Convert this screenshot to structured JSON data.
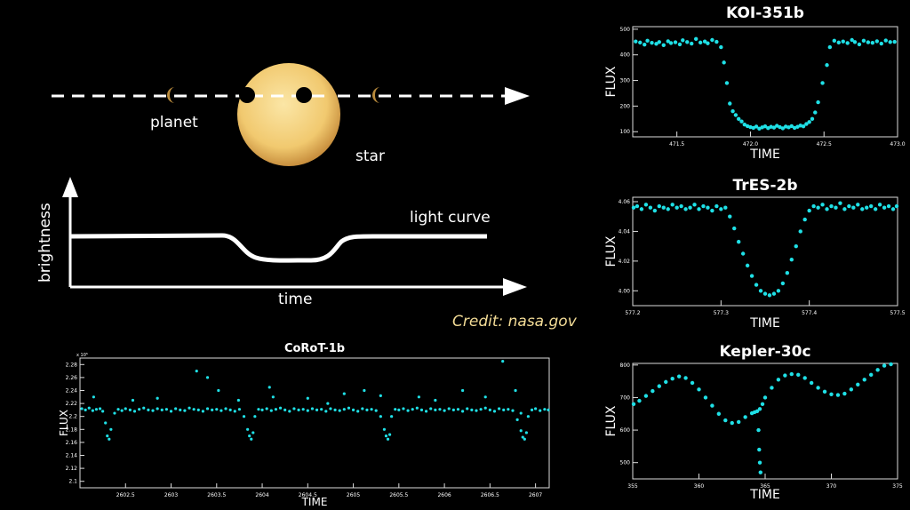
{
  "diagram": {
    "planet_label": "planet",
    "star_label": "star",
    "brightness_label": "brightness",
    "time_label": "time",
    "light_curve_label": "light curve",
    "credit": "Credit: nasa.gov",
    "star_color": "#f5d27c",
    "planet_color": "#b88a3c"
  },
  "point_color": "#1fe0e6",
  "chart_data": [
    {
      "id": "koi",
      "type": "scatter",
      "title": "KOI-351b",
      "xlabel": "TIME",
      "ylabel": "FLUX",
      "xlim": [
        471.2,
        473.0
      ],
      "ylim": [
        80,
        510
      ],
      "xticks": [
        471.5,
        472.0,
        472.5,
        473.0
      ],
      "xtick_labels": [
        "471.5",
        "472.0",
        "472.5",
        "473.0"
      ],
      "yticks": [
        100,
        200,
        300,
        400,
        500
      ],
      "ytick_labels": [
        "100",
        "200",
        "300",
        "400",
        "500"
      ],
      "x": [
        471.22,
        471.25,
        471.28,
        471.3,
        471.33,
        471.36,
        471.38,
        471.41,
        471.44,
        471.46,
        471.49,
        471.52,
        471.54,
        471.57,
        471.6,
        471.63,
        471.66,
        471.69,
        471.71,
        471.74,
        471.77,
        471.8,
        471.82,
        471.84,
        471.86,
        471.88,
        471.9,
        471.92,
        471.94,
        471.96,
        471.98,
        472.0,
        472.02,
        472.04,
        472.06,
        472.08,
        472.1,
        472.12,
        472.14,
        472.16,
        472.18,
        472.2,
        472.22,
        472.24,
        472.26,
        472.28,
        472.3,
        472.32,
        472.34,
        472.36,
        472.38,
        472.4,
        472.42,
        472.44,
        472.46,
        472.49,
        472.52,
        472.54,
        472.57,
        472.6,
        472.63,
        472.66,
        472.69,
        472.71,
        472.74,
        472.77,
        472.8,
        472.83,
        472.86,
        472.89,
        472.92,
        472.95,
        472.98
      ],
      "y": [
        452,
        448,
        440,
        455,
        447,
        443,
        450,
        438,
        453,
        446,
        449,
        441,
        457,
        450,
        444,
        462,
        448,
        452,
        445,
        458,
        451,
        430,
        370,
        290,
        210,
        180,
        165,
        150,
        140,
        128,
        122,
        118,
        115,
        120,
        112,
        117,
        121,
        114,
        119,
        116,
        123,
        118,
        113,
        120,
        117,
        122,
        115,
        119,
        124,
        121,
        130,
        138,
        150,
        175,
        215,
        290,
        360,
        430,
        455,
        448,
        452,
        446,
        458,
        450,
        441,
        455,
        449,
        447,
        453,
        444,
        456,
        450,
        451
      ]
    },
    {
      "id": "tres",
      "type": "scatter",
      "title": "TrES-2b",
      "xlabel": "TIME",
      "ylabel": "FLUX",
      "xlim": [
        577.2,
        577.5
      ],
      "ylim": [
        3.99,
        4.063
      ],
      "xticks": [
        577.2,
        577.3,
        577.4,
        577.5
      ],
      "xtick_labels": [
        "577.2",
        "577.3",
        "577.4",
        "577.5"
      ],
      "yticks": [
        4.0,
        4.02,
        4.04,
        4.06
      ],
      "ytick_labels": [
        "4.00",
        "4.02",
        "4.04",
        "4.06"
      ],
      "x": [
        577.2,
        577.205,
        577.21,
        577.215,
        577.22,
        577.225,
        577.23,
        577.235,
        577.24,
        577.245,
        577.25,
        577.255,
        577.26,
        577.265,
        577.27,
        577.275,
        577.28,
        577.285,
        577.29,
        577.295,
        577.3,
        577.305,
        577.31,
        577.315,
        577.32,
        577.325,
        577.33,
        577.335,
        577.34,
        577.345,
        577.35,
        577.355,
        577.36,
        577.365,
        577.37,
        577.375,
        577.38,
        577.385,
        577.39,
        577.395,
        577.4,
        577.405,
        577.41,
        577.415,
        577.42,
        577.425,
        577.43,
        577.435,
        577.44,
        577.445,
        577.45,
        577.455,
        577.46,
        577.465,
        577.47,
        577.475,
        577.48,
        577.485,
        577.49,
        577.495,
        577.5
      ],
      "y": [
        4.056,
        4.057,
        4.055,
        4.058,
        4.056,
        4.054,
        4.057,
        4.056,
        4.055,
        4.058,
        4.056,
        4.057,
        4.055,
        4.056,
        4.058,
        4.055,
        4.057,
        4.056,
        4.054,
        4.057,
        4.055,
        4.056,
        4.05,
        4.042,
        4.033,
        4.025,
        4.017,
        4.01,
        4.004,
        4.0,
        3.998,
        3.997,
        3.998,
        4.0,
        4.005,
        4.012,
        4.021,
        4.03,
        4.04,
        4.048,
        4.054,
        4.057,
        4.056,
        4.058,
        4.055,
        4.057,
        4.056,
        4.059,
        4.055,
        4.057,
        4.056,
        4.058,
        4.055,
        4.056,
        4.057,
        4.055,
        4.058,
        4.056,
        4.057,
        4.055,
        4.057
      ]
    },
    {
      "id": "kepler",
      "type": "scatter",
      "title": "Kepler-30c",
      "xlabel": "TIME",
      "ylabel": "FLUX",
      "xlim": [
        355,
        375
      ],
      "ylim": [
        450,
        805
      ],
      "xticks": [
        355,
        360,
        365,
        370,
        375
      ],
      "xtick_labels": [
        "355",
        "360",
        "365",
        "370",
        "375"
      ],
      "yticks": [
        500,
        600,
        700,
        800
      ],
      "ytick_labels": [
        "500",
        "600",
        "700",
        "800"
      ],
      "x": [
        355,
        355.5,
        356,
        356.5,
        357,
        357.5,
        358,
        358.5,
        359,
        359.5,
        360,
        360.5,
        361,
        361.5,
        362,
        362.5,
        363,
        363.5,
        364,
        364.2,
        364.4,
        364.6,
        364.8,
        365,
        365.5,
        366,
        366.5,
        367,
        367.5,
        368,
        368.5,
        369,
        369.5,
        370,
        370.5,
        371,
        371.5,
        372,
        372.5,
        373,
        373.5,
        374,
        374.5,
        364.5,
        364.55,
        364.6,
        364.65
      ],
      "y": [
        680,
        690,
        705,
        720,
        735,
        748,
        758,
        765,
        760,
        745,
        725,
        700,
        675,
        650,
        630,
        622,
        625,
        640,
        652,
        655,
        658,
        665,
        680,
        700,
        730,
        755,
        768,
        772,
        770,
        760,
        745,
        730,
        718,
        710,
        708,
        712,
        725,
        740,
        755,
        770,
        785,
        798,
        808,
        600,
        540,
        500,
        470
      ]
    },
    {
      "id": "corot",
      "type": "scatter",
      "title": "CoRoT-1b",
      "xlabel": "TIME",
      "ylabel": "FLUX",
      "exponent_label": "x 10⁵",
      "xlim": [
        2602.0,
        2607.15
      ],
      "ylim": [
        2.09,
        2.29
      ],
      "xticks": [
        2602.5,
        2603,
        2603.5,
        2604,
        2604.5,
        2605,
        2605.5,
        2606,
        2606.5,
        2607
      ],
      "xtick_labels": [
        "2602.5",
        "2603",
        "2603.5",
        "2604",
        "2604.5",
        "2605",
        "2605.5",
        "2606",
        "2606.5",
        "2607"
      ],
      "yticks": [
        2.1,
        2.12,
        2.14,
        2.16,
        2.18,
        2.2,
        2.22,
        2.24,
        2.26,
        2.28
      ],
      "ytick_labels": [
        "2.1",
        "2.12",
        "2.14",
        "2.16",
        "2.18",
        "2.2",
        "2.22",
        "2.24",
        "2.26",
        "2.28"
      ],
      "x": [
        2602.02,
        2602.06,
        2602.1,
        2602.14,
        2602.18,
        2602.22,
        2602.25,
        2602.28,
        2602.3,
        2602.32,
        2602.34,
        2602.38,
        2602.42,
        2602.46,
        2602.5,
        2602.55,
        2602.6,
        2602.65,
        2602.7,
        2602.75,
        2602.8,
        2602.85,
        2602.9,
        2602.95,
        2603.0,
        2603.05,
        2603.1,
        2603.15,
        2603.2,
        2603.25,
        2603.3,
        2603.35,
        2603.4,
        2603.45,
        2603.5,
        2603.55,
        2603.6,
        2603.65,
        2603.7,
        2603.75,
        2603.8,
        2603.84,
        2603.86,
        2603.88,
        2603.9,
        2603.92,
        2603.96,
        2604.0,
        2604.05,
        2604.1,
        2604.15,
        2604.2,
        2604.25,
        2604.3,
        2604.35,
        2604.4,
        2604.45,
        2604.5,
        2604.55,
        2604.6,
        2604.65,
        2604.7,
        2604.75,
        2604.8,
        2604.85,
        2604.9,
        2604.95,
        2605.0,
        2605.05,
        2605.1,
        2605.15,
        2605.2,
        2605.25,
        2605.3,
        2605.34,
        2605.36,
        2605.38,
        2605.4,
        2605.42,
        2605.46,
        2605.5,
        2605.55,
        2605.6,
        2605.65,
        2605.7,
        2605.75,
        2605.8,
        2605.85,
        2605.9,
        2605.95,
        2606.0,
        2606.05,
        2606.1,
        2606.15,
        2606.2,
        2606.25,
        2606.3,
        2606.35,
        2606.4,
        2606.45,
        2606.5,
        2606.55,
        2606.6,
        2606.65,
        2606.7,
        2606.75,
        2606.8,
        2606.84,
        2606.86,
        2606.88,
        2606.9,
        2606.92,
        2606.96,
        2607.0,
        2607.05,
        2607.1,
        2607.14,
        2602.15,
        2602.58,
        2602.85,
        2603.28,
        2603.4,
        2603.52,
        2603.74,
        2604.08,
        2604.12,
        2604.5,
        2604.72,
        2604.9,
        2605.12,
        2605.3,
        2605.72,
        2605.9,
        2606.2,
        2606.45,
        2606.64,
        2606.78,
        2606.84
      ],
      "y": [
        2.212,
        2.21,
        2.213,
        2.209,
        2.211,
        2.212,
        2.208,
        2.19,
        2.17,
        2.165,
        2.18,
        2.205,
        2.211,
        2.209,
        2.212,
        2.21,
        2.208,
        2.211,
        2.213,
        2.21,
        2.209,
        2.212,
        2.21,
        2.211,
        2.208,
        2.212,
        2.21,
        2.209,
        2.213,
        2.211,
        2.21,
        2.208,
        2.212,
        2.21,
        2.211,
        2.209,
        2.212,
        2.21,
        2.208,
        2.211,
        2.2,
        2.18,
        2.17,
        2.165,
        2.175,
        2.2,
        2.211,
        2.21,
        2.212,
        2.209,
        2.211,
        2.213,
        2.21,
        2.208,
        2.212,
        2.21,
        2.211,
        2.209,
        2.212,
        2.21,
        2.211,
        2.208,
        2.212,
        2.21,
        2.209,
        2.211,
        2.213,
        2.21,
        2.208,
        2.212,
        2.21,
        2.211,
        2.209,
        2.2,
        2.18,
        2.17,
        2.165,
        2.172,
        2.2,
        2.211,
        2.21,
        2.212,
        2.209,
        2.211,
        2.213,
        2.21,
        2.208,
        2.212,
        2.21,
        2.211,
        2.209,
        2.212,
        2.21,
        2.211,
        2.208,
        2.212,
        2.21,
        2.209,
        2.211,
        2.213,
        2.21,
        2.208,
        2.212,
        2.21,
        2.211,
        2.209,
        2.195,
        2.178,
        2.168,
        2.165,
        2.175,
        2.2,
        2.21,
        2.212,
        2.209,
        2.211,
        2.21,
        2.23,
        2.225,
        2.228,
        2.27,
        2.26,
        2.24,
        2.225,
        2.245,
        2.23,
        2.228,
        2.22,
        2.235,
        2.24,
        2.232,
        2.23,
        2.225,
        2.24,
        2.23,
        2.285,
        2.24,
        2.205
      ]
    }
  ]
}
